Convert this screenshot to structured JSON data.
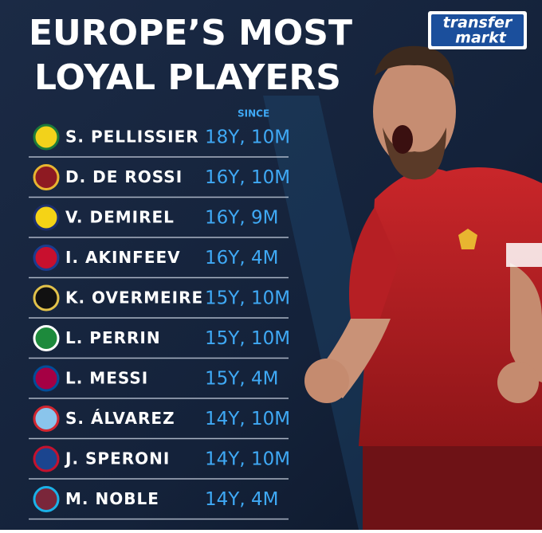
{
  "header": {
    "title_line1": "EUROPE’S MOST",
    "title_line2": "LOYAL PLAYERS"
  },
  "logo": {
    "line1": "transfer",
    "line2": "markt"
  },
  "list": {
    "column_header": "SINCE",
    "rows": [
      {
        "name": "S. PELLISSIER",
        "tenure": "18Y, 10M"
      },
      {
        "name": "D. DE ROSSI",
        "tenure": "16Y, 10M"
      },
      {
        "name": "V. DEMIREL",
        "tenure": "16Y, 9M"
      },
      {
        "name": "I. AKINFEEV",
        "tenure": "16Y, 4M"
      },
      {
        "name": "K. OVERMEIRE",
        "tenure": "15Y, 10M"
      },
      {
        "name": "L. PERRIN",
        "tenure": "15Y, 10M"
      },
      {
        "name": "L. MESSI",
        "tenure": "15Y, 4M"
      },
      {
        "name": "S. ÁLVAREZ",
        "tenure": "14Y, 10M"
      },
      {
        "name": "J. SPERONI",
        "tenure": "14Y, 10M"
      },
      {
        "name": "M. NOBLE",
        "tenure": "14Y, 4M"
      }
    ]
  }
}
